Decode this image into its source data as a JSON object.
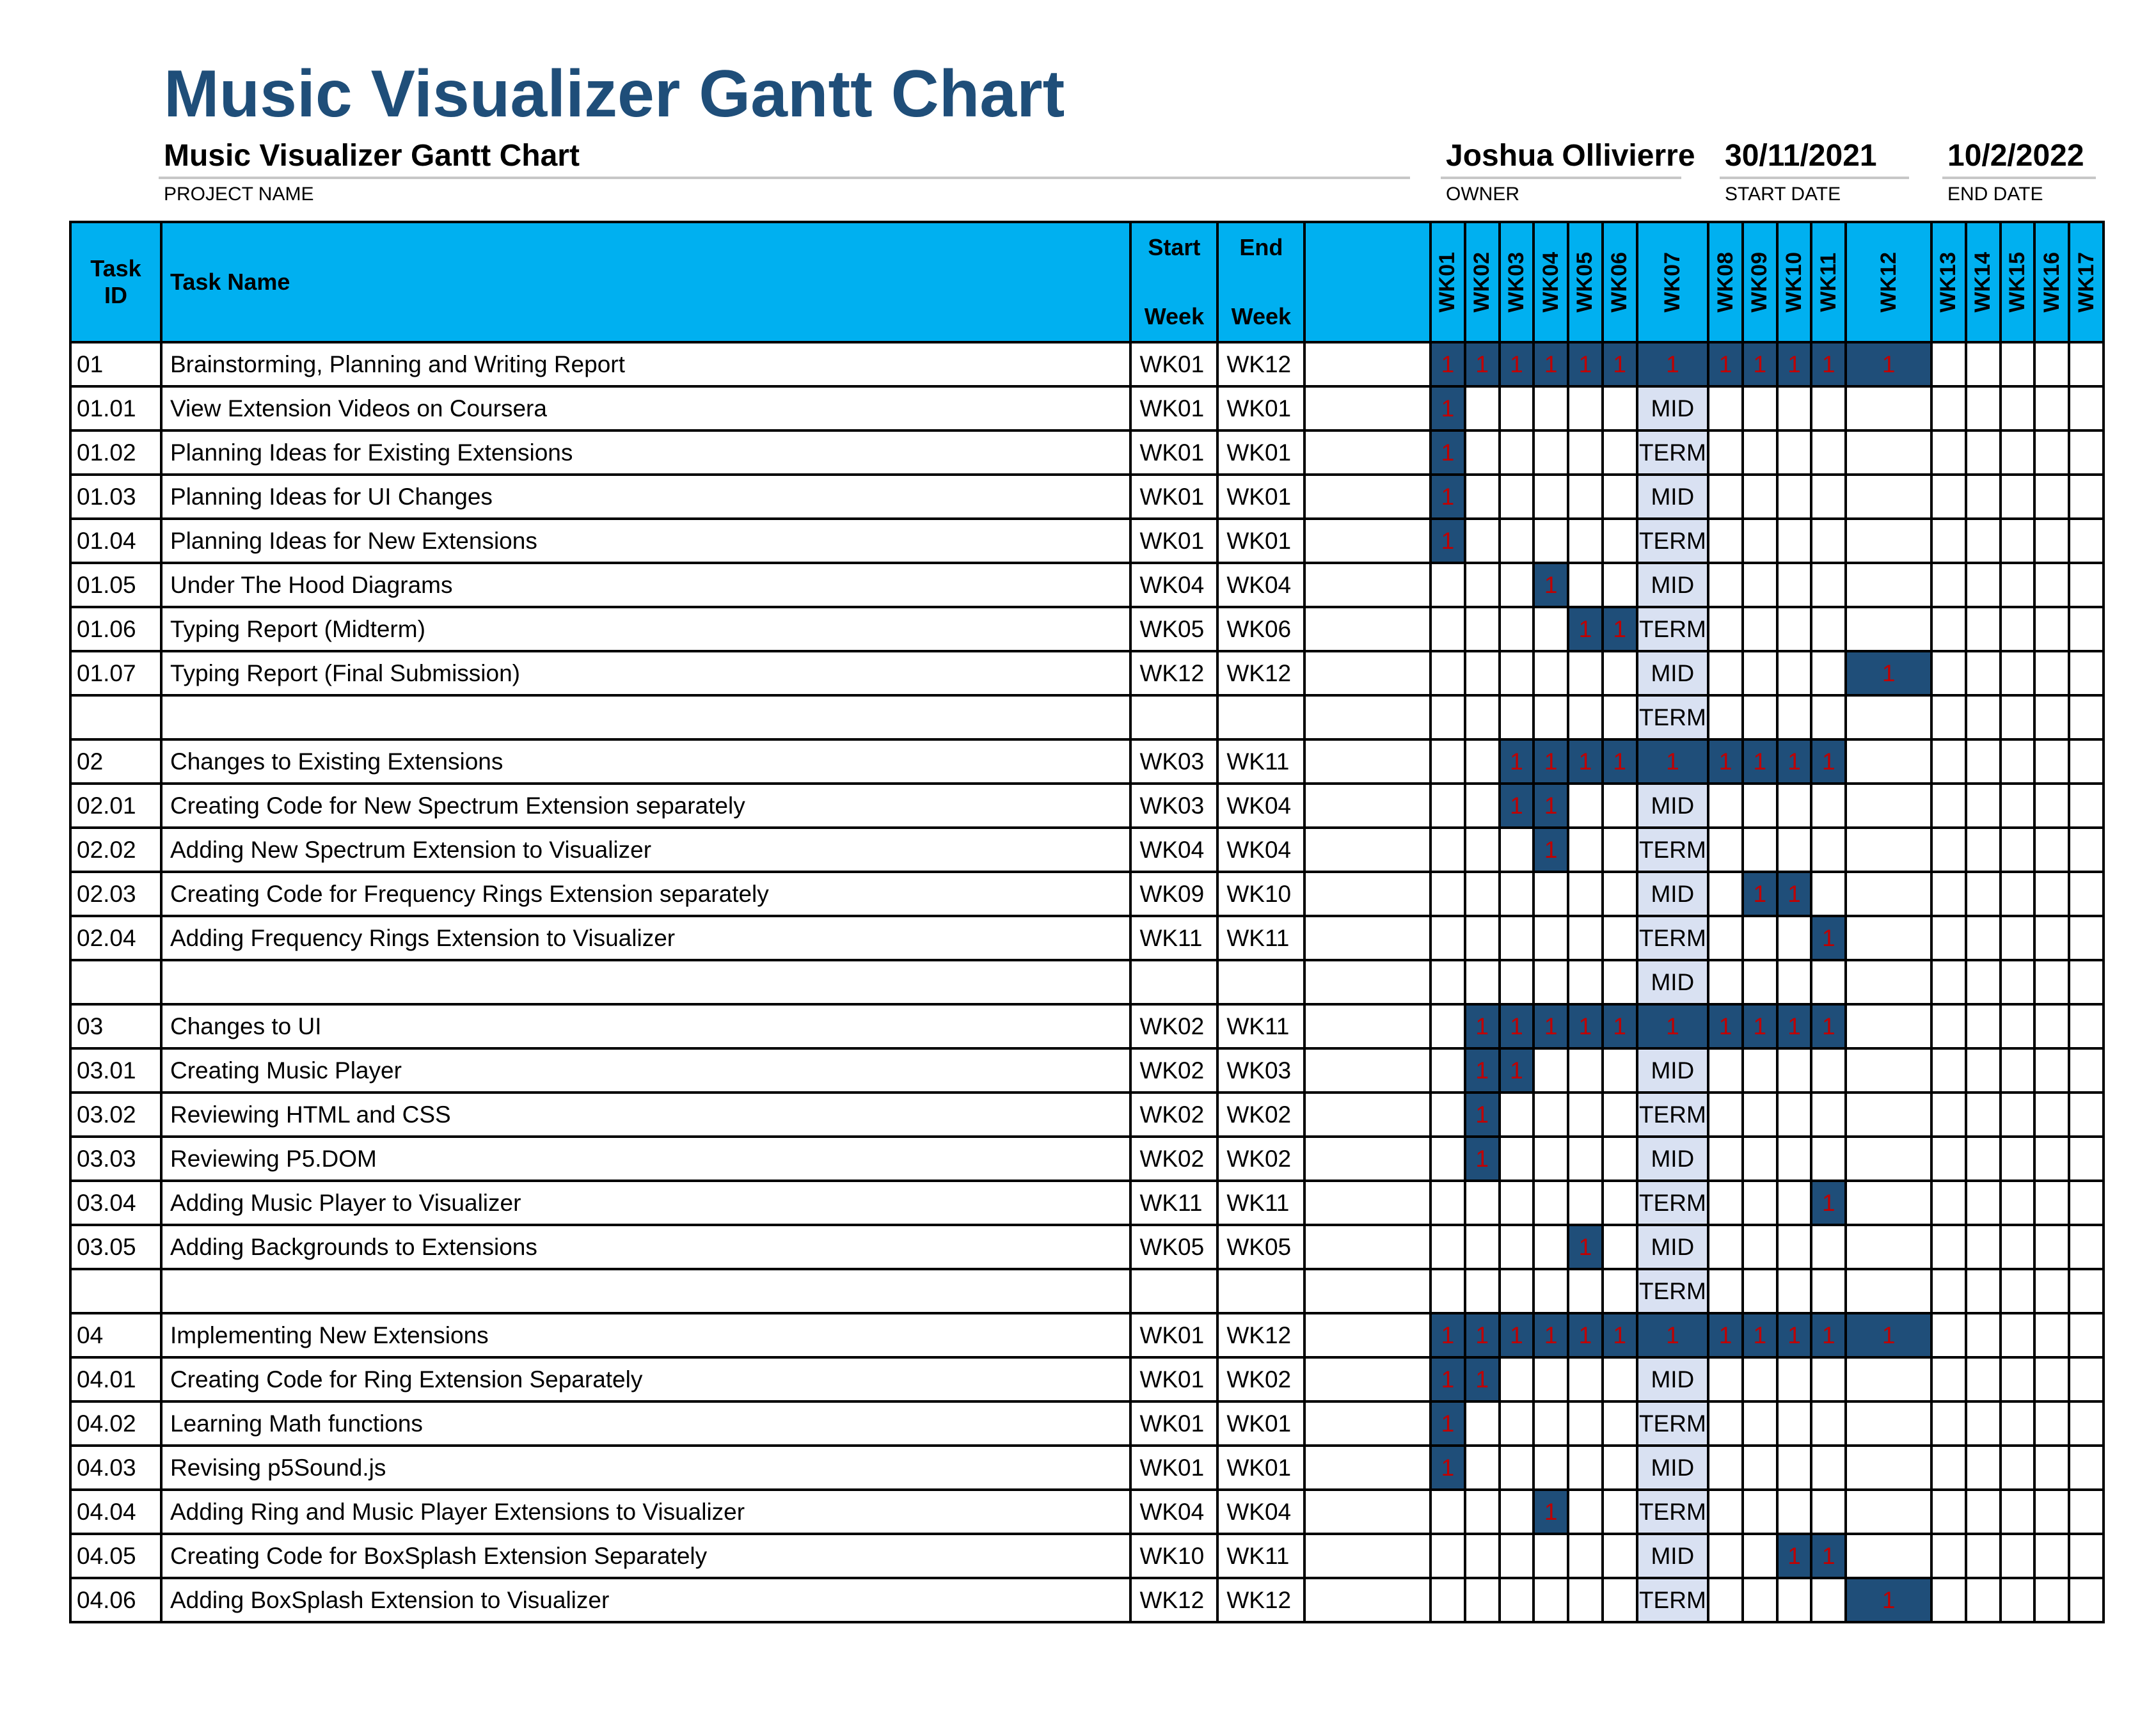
{
  "page_title": "Music Visualizer Gantt Chart",
  "project": {
    "name": "Music Visualizer Gantt Chart",
    "name_caption": "PROJECT NAME",
    "owner": "Joshua Ollivierre",
    "owner_caption": "OWNER",
    "start_date": "30/11/2021",
    "start_caption": "START DATE",
    "end_date": "10/2/2022",
    "end_caption": "END DATE"
  },
  "headers": {
    "task_id_1": "Task",
    "task_id_2": "ID",
    "task_name": "Task Name",
    "start_1": "Start",
    "start_2": "Week",
    "end_1": "End",
    "end_2": "Week"
  },
  "weeks": [
    "WK01",
    "WK02",
    "WK03",
    "WK04",
    "WK05",
    "WK06",
    "WK07",
    "WK08",
    "WK09",
    "WK10",
    "WK11",
    "WK12",
    "WK13",
    "WK14",
    "WK15",
    "WK16",
    "WK17"
  ],
  "colors": {
    "header_bg": "#00b0f0",
    "bar_fill": "#1f4e79",
    "bar_mark": "#c00000",
    "mid_term_bg": "#d9e1f2",
    "title": "#1f4e79"
  },
  "tasks": [
    {
      "id": "01",
      "name": "Brainstorming, Planning and Writing Report",
      "start": "WK01",
      "end": "WK12",
      "group": true,
      "mark": "1",
      "wk07": "1"
    },
    {
      "id": "01.01",
      "name": "View Extension Videos on Coursera",
      "start": "WK01",
      "end": "WK01",
      "mark": "1",
      "wk07": "MID"
    },
    {
      "id": "01.02",
      "name": "Planning Ideas for Existing Extensions",
      "start": "WK01",
      "end": "WK01",
      "mark": "1",
      "wk07": "TERM"
    },
    {
      "id": "01.03",
      "name": "Planning Ideas for UI Changes",
      "start": "WK01",
      "end": "WK01",
      "mark": "1",
      "wk07": "MID"
    },
    {
      "id": "01.04",
      "name": "Planning Ideas for New Extensions",
      "start": "WK01",
      "end": "WK01",
      "mark": "1",
      "wk07": "TERM"
    },
    {
      "id": "01.05",
      "name": "Under The Hood Diagrams",
      "start": "WK04",
      "end": "WK04",
      "mark": "1",
      "wk07": "MID"
    },
    {
      "id": "01.06",
      "name": "Typing Report (Midterm)",
      "start": "WK05",
      "end": "WK06",
      "mark": "1",
      "wk07": "TERM"
    },
    {
      "id": "01.07",
      "name": "Typing Report (Final Submission)",
      "start": "WK12",
      "end": "WK12",
      "mark": "1",
      "wk07": "MID"
    },
    {
      "id": "",
      "name": "",
      "start": "",
      "end": "",
      "wk07": "TERM"
    },
    {
      "id": "02",
      "name": "Changes to Existing Extensions",
      "start": "WK03",
      "end": "WK11",
      "group": true,
      "mark": "1",
      "wk07": "1"
    },
    {
      "id": "02.01",
      "name": "Creating Code for New Spectrum Extension separately",
      "start": "WK03",
      "end": "WK04",
      "mark": "1",
      "wk07": "MID"
    },
    {
      "id": "02.02",
      "name": "Adding New Spectrum Extension to Visualizer",
      "start": "WK04",
      "end": "WK04",
      "mark": "1",
      "wk07": "TERM"
    },
    {
      "id": "02.03",
      "name": "Creating Code for Frequency Rings Extension separately",
      "start": "WK09",
      "end": "WK10",
      "mark": "1",
      "wk07": "MID"
    },
    {
      "id": "02.04",
      "name": "Adding Frequency Rings Extension to Visualizer",
      "start": "WK11",
      "end": "WK11",
      "mark": "1",
      "wk07": "TERM"
    },
    {
      "id": "",
      "name": "",
      "start": "",
      "end": "",
      "wk07": "MID"
    },
    {
      "id": "03",
      "name": "Changes to UI",
      "start": "WK02",
      "end": "WK11",
      "group": true,
      "mark": "1",
      "wk07": "1"
    },
    {
      "id": "03.01",
      "name": "Creating Music Player",
      "start": "WK02",
      "end": "WK03",
      "mark": "1",
      "wk07": "MID"
    },
    {
      "id": "03.02",
      "name": "Reviewing HTML and CSS",
      "start": "WK02",
      "end": "WK02",
      "mark": "1",
      "wk07": "TERM"
    },
    {
      "id": "03.03",
      "name": "Reviewing P5.DOM",
      "start": "WK02",
      "end": "WK02",
      "mark": "1",
      "wk07": "MID"
    },
    {
      "id": "03.04",
      "name": "Adding Music Player to Visualizer",
      "start": "WK11",
      "end": "WK11",
      "mark": "1",
      "wk07": "TERM"
    },
    {
      "id": "03.05",
      "name": "Adding Backgrounds to Extensions",
      "start": "WK05",
      "end": "WK05",
      "mark": "1",
      "wk07": "MID"
    },
    {
      "id": "",
      "name": "",
      "start": "",
      "end": "",
      "wk07": "TERM"
    },
    {
      "id": "04",
      "name": "Implementing New Extensions",
      "start": "WK01",
      "end": "WK12",
      "group": true,
      "mark": "1",
      "wk07": "1"
    },
    {
      "id": "04.01",
      "name": "Creating Code for Ring Extension Separately",
      "start": "WK01",
      "end": "WK02",
      "mark": "1",
      "wk07": "MID"
    },
    {
      "id": "04.02",
      "name": "Learning  Math functions",
      "start": "WK01",
      "end": "WK01",
      "mark": "1",
      "wk07": "TERM"
    },
    {
      "id": "04.03",
      "name": "Revising p5Sound.js",
      "start": "WK01",
      "end": "WK01",
      "mark": "1",
      "wk07": "MID"
    },
    {
      "id": "04.04",
      "name": "Adding Ring and Music Player Extensions to Visualizer",
      "start": "WK04",
      "end": "WK04",
      "mark": "1",
      "wk07": "TERM"
    },
    {
      "id": "04.05",
      "name": "Creating Code for BoxSplash Extension Separately",
      "start": "WK10",
      "end": "WK11",
      "mark": "1",
      "wk07": "MID"
    },
    {
      "id": "04.06",
      "name": "Adding BoxSplash Extension to Visualizer",
      "start": "WK12",
      "end": "WK12",
      "mark": "1",
      "wk07": "TERM"
    }
  ]
}
